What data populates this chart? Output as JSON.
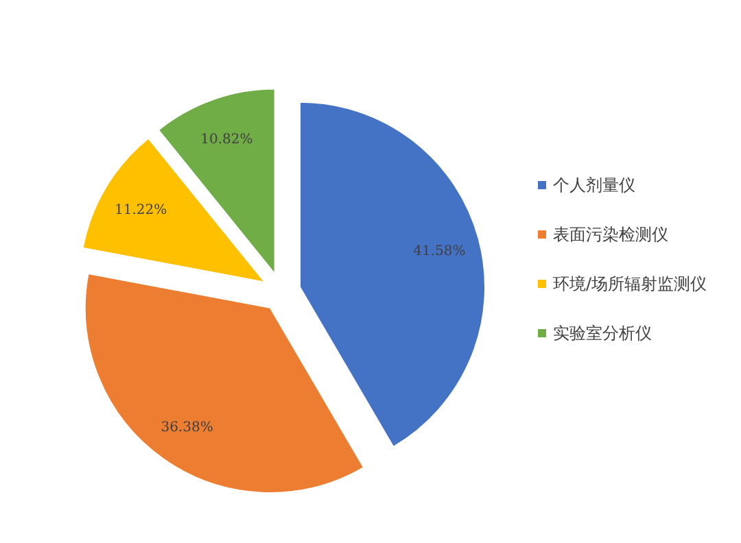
{
  "chart_data": {
    "type": "pie",
    "categories": [
      "个人剂量仪",
      "表面污染检测仪",
      "环境/场所辐射监测仪",
      "实验室分析仪"
    ],
    "values": [
      41.58,
      36.38,
      11.22,
      10.82
    ],
    "value_labels": [
      "41.58%",
      "36.38%",
      "11.22%",
      "10.82%"
    ],
    "colors": [
      "#4472c4",
      "#ed7d31",
      "#ffc000",
      "#70ad47"
    ],
    "legend": "right"
  }
}
